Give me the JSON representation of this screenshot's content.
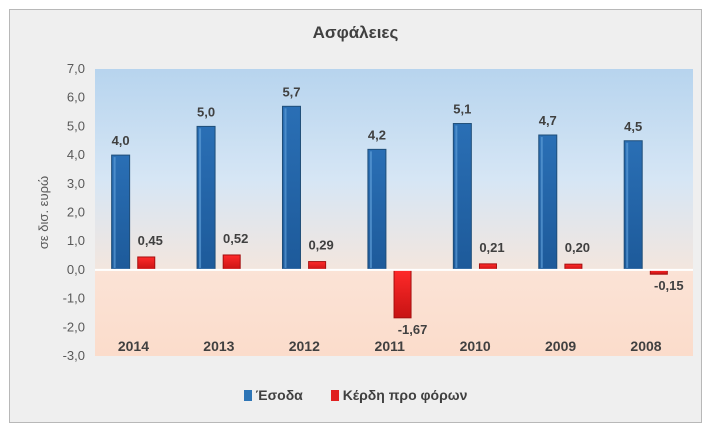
{
  "chart_data": {
    "type": "bar",
    "title": "Ασφάλειες",
    "ylabel": "σε δισ. ευρώ",
    "xlabel": "",
    "categories": [
      "2014",
      "2013",
      "2012",
      "2011",
      "2010",
      "2009",
      "2008"
    ],
    "series": [
      {
        "name": "Έσοδα",
        "values": [
          4.0,
          5.0,
          5.7,
          4.2,
          5.1,
          4.7,
          4.5
        ],
        "labels": [
          "4,0",
          "5,0",
          "5,7",
          "4,2",
          "5,1",
          "4,7",
          "4,5"
        ],
        "color": "#2e75b6",
        "color_dark": "#1f4e79"
      },
      {
        "name": "Κέρδη προ φόρων",
        "values": [
          0.45,
          0.52,
          0.29,
          -1.67,
          0.21,
          0.2,
          -0.15
        ],
        "labels": [
          "0,45",
          "0,52",
          "0,29",
          "-1,67",
          "0,21",
          "0,20",
          "-0,15"
        ],
        "color": "#e02020",
        "color_dark": "#a50f0f"
      }
    ],
    "ylim": [
      -3.0,
      7.0
    ],
    "yticks": [
      "-3,0",
      "-2,0",
      "-1,0",
      "0,0",
      "1,0",
      "2,0",
      "3,0",
      "4,0",
      "5,0",
      "6,0",
      "7,0"
    ],
    "grid": false,
    "legend": "bottom"
  }
}
